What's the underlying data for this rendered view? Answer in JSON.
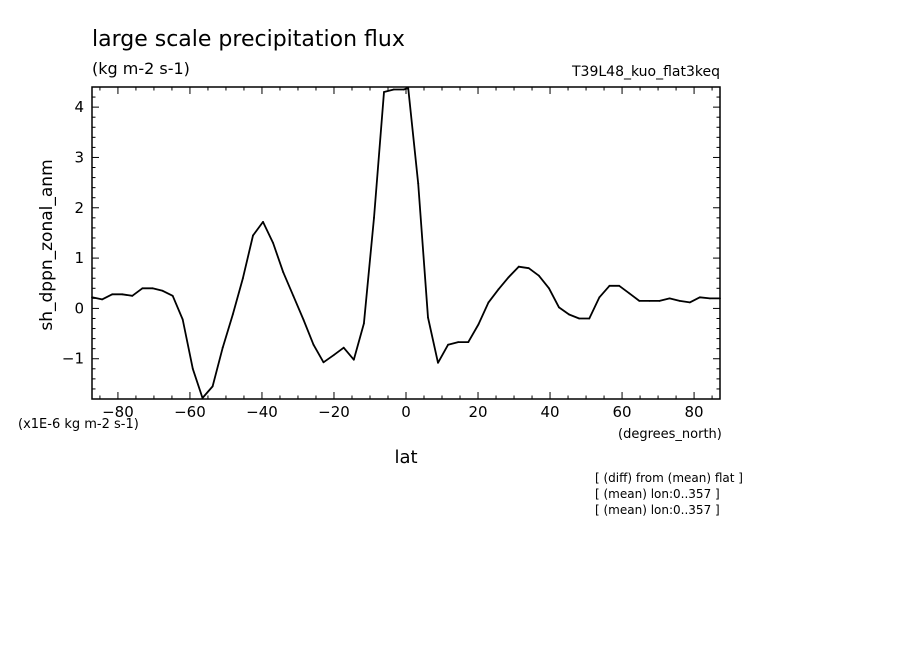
{
  "chart_data": {
    "type": "line",
    "title": "large scale precipitation flux",
    "subtitle": "(kg m-2 s-1)",
    "run_label": "T39L48_kuo_flat3keq",
    "xlabel": "lat",
    "xunits": "(degrees_north)",
    "ylabel": "sh_dppn_zonal_anm",
    "yscale_note": "(x1E-6 kg m-2 s-1)",
    "xlim": [
      -87.2,
      87.2
    ],
    "ylim": [
      -1.8,
      4.4
    ],
    "xticks": [
      -80,
      -60,
      -40,
      -20,
      0,
      20,
      40,
      60,
      80
    ],
    "yticks": [
      -1,
      0,
      1,
      2,
      3,
      4
    ],
    "grid": false,
    "legend": "none",
    "annotations": [
      "[ (diff) from (mean) flat ]",
      "[ (mean) lon:0..357 ]",
      "[ (mean) lon:0..357 ]"
    ],
    "series": [
      {
        "x": [
          -87.2,
          -84.4,
          -81.6,
          -78.8,
          -76.0,
          -73.2,
          -70.4,
          -67.6,
          -64.8,
          -62.0,
          -59.2,
          -56.5,
          -53.7,
          -50.9,
          -48.1,
          -45.3,
          -42.5,
          -39.7,
          -36.9,
          -34.1,
          -31.3,
          -28.5,
          -25.7,
          -22.9,
          -20.1,
          -17.3,
          -14.5,
          -11.7,
          -8.9,
          -6.1,
          -3.4,
          -0.6,
          0.6,
          3.4,
          6.1,
          8.9,
          11.7,
          14.5,
          17.3,
          20.1,
          22.9,
          25.7,
          28.5,
          31.3,
          34.1,
          36.9,
          39.7,
          42.5,
          45.3,
          48.1,
          50.9,
          53.7,
          56.5,
          59.2,
          62.0,
          64.8,
          67.6,
          70.4,
          73.2,
          76.0,
          78.8,
          81.6,
          84.4,
          87.2
        ],
        "values": [
          0.22,
          0.18,
          0.28,
          0.28,
          0.25,
          0.4,
          0.4,
          0.35,
          0.25,
          -0.22,
          -1.2,
          -1.78,
          -1.55,
          -0.78,
          -0.12,
          0.6,
          1.45,
          1.72,
          1.3,
          0.72,
          0.25,
          -0.22,
          -0.72,
          -1.07,
          -0.93,
          -0.78,
          -1.02,
          -0.3,
          1.8,
          4.3,
          4.35,
          4.35,
          4.38,
          2.48,
          -0.18,
          -1.08,
          -0.72,
          -0.67,
          -0.67,
          -0.32,
          0.12,
          0.38,
          0.62,
          0.83,
          0.8,
          0.65,
          0.4,
          0.02,
          -0.12,
          -0.2,
          -0.2,
          0.22,
          0.45,
          0.45,
          0.3,
          0.15,
          0.15,
          0.15,
          0.2,
          0.15,
          0.12,
          0.22,
          0.2,
          0.2
        ]
      }
    ]
  }
}
